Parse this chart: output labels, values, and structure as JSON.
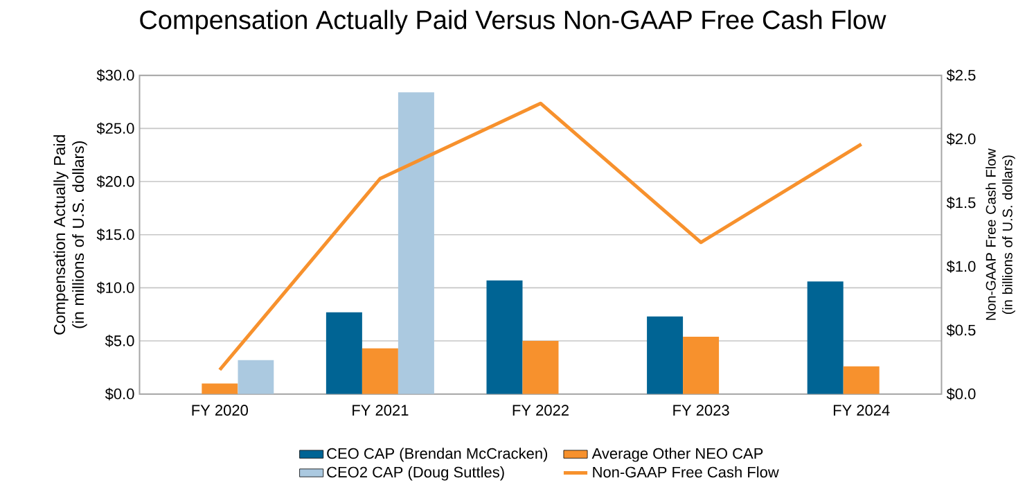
{
  "chart_data": {
    "type": "bar",
    "title": "Compensation Actually Paid Versus Non-GAAP Free Cash Flow",
    "ylabel": "Compensation Actually Paid (in millions of U.S. dollars)",
    "y2label": "Non-GAAP Free Cash Flow (in billions of U.S. dollars)",
    "categories": [
      "FY 2020",
      "FY 2021",
      "FY 2022",
      "FY 2023",
      "FY 2024"
    ],
    "series": [
      {
        "name": "CEO CAP (Brendan McCracken)",
        "color": "#006494",
        "values": [
          null,
          7.7,
          10.7,
          7.3,
          10.6
        ]
      },
      {
        "name": "Average Other NEO CAP",
        "color": "#f7912d",
        "values": [
          1.0,
          4.3,
          5.0,
          5.4,
          2.6
        ]
      },
      {
        "name": "CEO2 CAP (Doug Suttles)",
        "color": "#abc9e0",
        "values": [
          3.2,
          28.4,
          null,
          null,
          null
        ]
      },
      {
        "name": "Non-GAAP Free Cash Flow",
        "type": "line",
        "axis": "y2",
        "color": "#f7912d",
        "values": [
          0.19,
          1.69,
          2.28,
          1.19,
          1.96
        ]
      }
    ],
    "ylim": [
      0,
      30
    ],
    "yticks": [
      {
        "value": 0,
        "label": "$0.0"
      },
      {
        "value": 5,
        "label": "$5.0"
      },
      {
        "value": 10,
        "label": "$10.0"
      },
      {
        "value": 15,
        "label": "$15.0"
      },
      {
        "value": 20,
        "label": "$20.0"
      },
      {
        "value": 25,
        "label": "$25.0"
      },
      {
        "value": 30,
        "label": "$30.0"
      }
    ],
    "y2lim": [
      0,
      2.5
    ],
    "y2ticks": [
      {
        "value": 0,
        "label": "$0.0"
      },
      {
        "value": 0.5,
        "label": "$0.5"
      },
      {
        "value": 1,
        "label": "$1.0"
      },
      {
        "value": 1.5,
        "label": "$1.5"
      },
      {
        "value": 2,
        "label": "$2.0"
      },
      {
        "value": 2.5,
        "label": "$2.5"
      }
    ],
    "grid": "y",
    "legend": "bottom",
    "marker": "none",
    "line_style": "solid"
  }
}
